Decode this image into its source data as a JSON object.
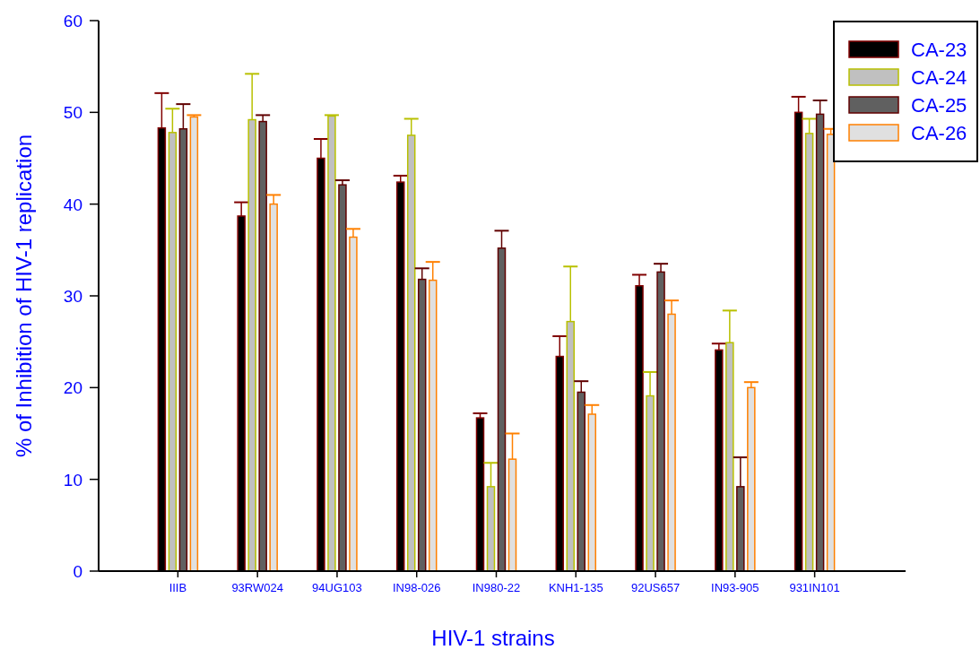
{
  "chart_data": {
    "type": "bar",
    "xlabel": "HIV-1 strains",
    "ylabel": "% of Inhibition of HIV-1 replication",
    "categories": [
      "IIIB",
      "93RW024",
      "94UG103",
      "IN98-026",
      "IN980-22",
      "KNH1-135",
      "92US657",
      "IN93-905",
      "931IN101"
    ],
    "series": [
      {
        "name": "CA-23",
        "color": "#000000",
        "values": [
          48.3,
          38.7,
          45.0,
          42.4,
          16.7,
          23.4,
          31.1,
          24.1,
          50.0
        ],
        "errors": [
          [
            48.3,
            52.1
          ],
          [
            38.7,
            40.2
          ],
          [
            45.0,
            47.1
          ],
          [
            42.4,
            43.1
          ],
          [
            16.7,
            17.2
          ],
          [
            23.4,
            25.6
          ],
          [
            31.1,
            32.3
          ],
          [
            24.1,
            24.8
          ],
          [
            50.0,
            51.7
          ]
        ]
      },
      {
        "name": "CA-24",
        "color": "#c0c0c0",
        "values": [
          47.8,
          49.2,
          49.6,
          47.5,
          9.2,
          27.2,
          19.1,
          24.9,
          47.7
        ],
        "errors": [
          [
            47.8,
            50.4
          ],
          [
            49.2,
            54.2
          ],
          [
            49.6,
            49.7
          ],
          [
            47.5,
            49.3
          ],
          [
            9.2,
            11.8
          ],
          [
            27.2,
            33.2
          ],
          [
            19.1,
            21.7
          ],
          [
            24.9,
            28.4
          ],
          [
            47.7,
            49.3
          ]
        ]
      },
      {
        "name": "CA-25",
        "color": "#606060",
        "values": [
          48.2,
          49.0,
          42.1,
          31.8,
          35.2,
          19.5,
          32.6,
          9.2,
          49.8
        ],
        "errors": [
          [
            48.2,
            50.9
          ],
          [
            49.0,
            49.7
          ],
          [
            42.1,
            42.6
          ],
          [
            31.8,
            33.0
          ],
          [
            35.2,
            37.1
          ],
          [
            19.5,
            20.7
          ],
          [
            32.6,
            33.5
          ],
          [
            9.2,
            12.4
          ],
          [
            49.8,
            51.3
          ]
        ]
      },
      {
        "name": "CA-26",
        "color": "#e0e0e0",
        "values": [
          49.5,
          40.0,
          36.4,
          31.7,
          12.2,
          17.1,
          28.0,
          20.0,
          47.6
        ],
        "errors": [
          [
            49.5,
            49.7
          ],
          [
            40.0,
            41.0
          ],
          [
            36.4,
            37.3
          ],
          [
            31.7,
            33.7
          ],
          [
            12.2,
            15.0
          ],
          [
            17.1,
            18.1
          ],
          [
            28.0,
            29.5
          ],
          [
            20.0,
            20.6
          ],
          [
            47.6,
            48.2
          ]
        ]
      }
    ],
    "ylim": [
      0,
      60
    ],
    "yticks": [
      0,
      10,
      20,
      30,
      40,
      50,
      60
    ],
    "grid": false,
    "legend": "top right"
  }
}
